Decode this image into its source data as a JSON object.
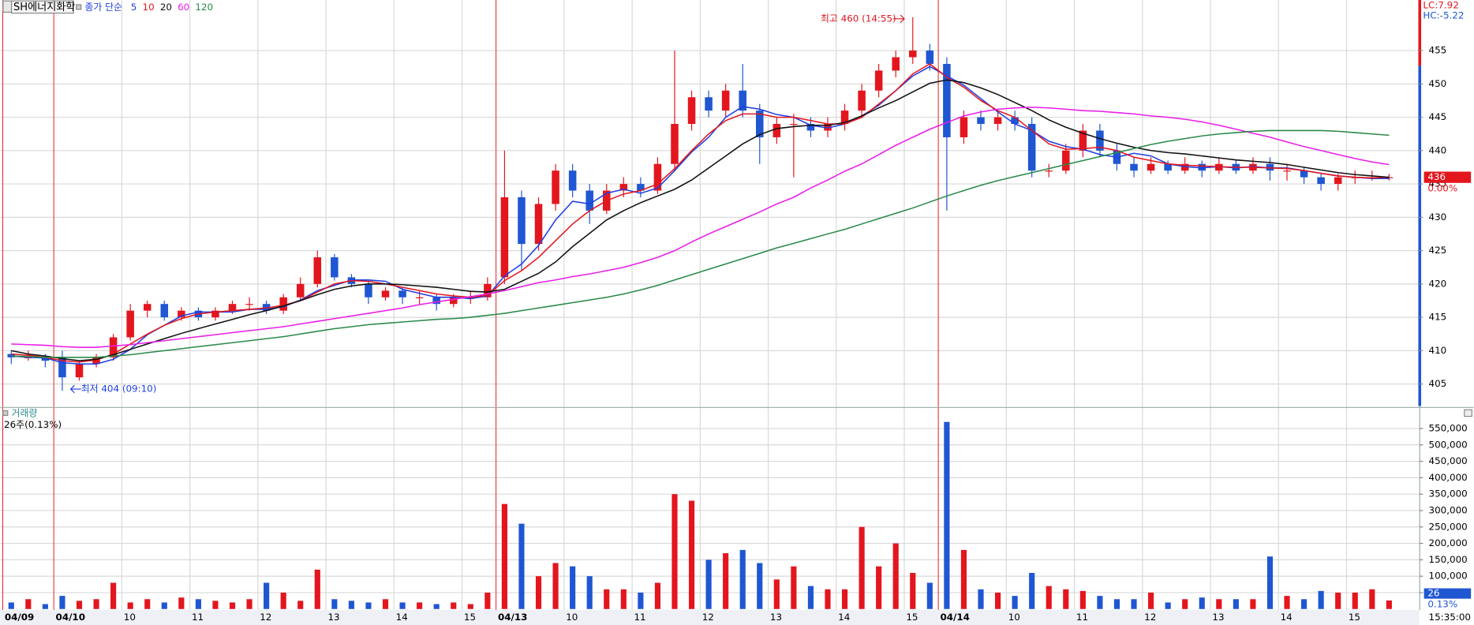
{
  "chart_data": [
    {
      "type": "candlestick",
      "title": "SH에너지화학",
      "legend_title": "종가 단순",
      "up_color": "#e3161e",
      "down_color": "#1f56d2",
      "ylim": [
        401.7,
        462.3
      ],
      "yticks": [
        405,
        410,
        415,
        420,
        425,
        430,
        435,
        440,
        445,
        450,
        455
      ],
      "grid": true,
      "info_labels": [
        "LC:7.92",
        "HC:-5.22"
      ],
      "last_price": 436,
      "last_change": "0.00%",
      "annotations": [
        "최고 460 (14:55)",
        "최저 404 (09:10)"
      ],
      "open": [
        409.5,
        409,
        409,
        409,
        406,
        408,
        409,
        412,
        416,
        417,
        415,
        416,
        415,
        416,
        417,
        417,
        416,
        418,
        420,
        424,
        421,
        420,
        418,
        419,
        418,
        418,
        417,
        418,
        418,
        421,
        433,
        426,
        432,
        437,
        434,
        431,
        434,
        435,
        434,
        438,
        444,
        448,
        446,
        449,
        446,
        442,
        444,
        444,
        443,
        444,
        446,
        449,
        452,
        454,
        455,
        453,
        442,
        445,
        444,
        445,
        444,
        437,
        437,
        440,
        443,
        440,
        438,
        437,
        438,
        437,
        438,
        437,
        438,
        437,
        438,
        437,
        437,
        436,
        435,
        436,
        436,
        436
      ],
      "high": [
        410,
        410,
        409.5,
        410,
        408.5,
        409.5,
        412.5,
        417,
        417.5,
        417.5,
        416.5,
        416.5,
        416.5,
        417.5,
        418,
        417.5,
        418.5,
        421,
        425,
        424.5,
        421.5,
        420.5,
        419.5,
        419.5,
        419,
        418.5,
        418.5,
        419,
        421,
        440,
        434,
        433,
        438,
        438,
        435,
        435,
        436,
        436,
        439,
        455,
        449,
        449,
        450,
        453,
        447,
        445,
        445.5,
        445,
        445,
        447,
        450,
        453,
        455,
        460,
        456,
        454,
        446,
        446,
        446,
        446,
        445,
        438,
        441,
        444,
        444,
        441,
        439,
        439,
        438.5,
        439,
        438.5,
        439,
        438.5,
        439,
        439,
        438,
        437.5,
        436.5,
        436.5,
        437,
        437,
        436.5
      ],
      "low": [
        408,
        408.5,
        407.5,
        404,
        405.5,
        407.5,
        408.5,
        411.5,
        415,
        414.5,
        414.5,
        414.5,
        414.5,
        415.5,
        416,
        415.5,
        415.5,
        417.5,
        419.5,
        420.5,
        419.5,
        417,
        417.5,
        417,
        417,
        416,
        416.5,
        417,
        417.5,
        420,
        422,
        425,
        431,
        433,
        429,
        430.5,
        433,
        433,
        433.5,
        437,
        443,
        445,
        445,
        445,
        438,
        441,
        436,
        442,
        442,
        443,
        445,
        448,
        451,
        453,
        452,
        431,
        441,
        443,
        443,
        443,
        436,
        436,
        436.5,
        439,
        439,
        437,
        436,
        436.5,
        436.5,
        436.5,
        436,
        436.5,
        436.5,
        436.5,
        435.5,
        435.5,
        435,
        434,
        434,
        435,
        435.5,
        435.5
      ],
      "close": [
        409,
        409,
        408.5,
        406,
        408,
        409,
        412,
        416,
        417,
        415,
        416,
        415,
        416,
        417,
        417,
        416,
        418,
        420,
        424,
        421,
        420,
        418,
        419,
        418,
        418,
        417,
        418,
        418,
        420,
        433,
        426,
        432,
        437,
        434,
        431,
        434,
        435,
        434,
        438,
        444,
        448,
        446,
        449,
        446,
        442,
        444,
        444,
        443,
        444,
        446,
        449,
        452,
        454,
        455,
        453,
        442,
        445,
        444,
        445,
        444,
        437,
        437,
        440,
        443,
        440,
        438,
        437,
        438,
        437,
        438,
        437,
        438,
        437,
        438,
        437,
        437,
        436,
        435,
        436,
        436,
        436,
        436
      ],
      "series": [
        {
          "name": "5",
          "color": "#1f3fe0",
          "values": [
            409.2,
            409,
            408.9,
            408.2,
            408,
            408,
            408.7,
            410.2,
            412.4,
            413.8,
            415.2,
            415.8,
            415.8,
            415.8,
            416.2,
            416.2,
            416.6,
            417.6,
            419,
            419.8,
            420.6,
            420.6,
            420.4,
            419.2,
            418.6,
            418,
            418,
            417.8,
            418.2,
            421.2,
            423,
            425.8,
            429.6,
            432.4,
            432,
            433.6,
            434.2,
            433.6,
            434.4,
            437,
            439.8,
            442,
            445,
            446.6,
            446.2,
            445.4,
            445,
            443.8,
            443.4,
            444,
            445.2,
            446.8,
            449,
            451.2,
            452.6,
            451.2,
            449.8,
            447.8,
            445.8,
            444,
            443,
            441.4,
            440.6,
            440.2,
            439.4,
            439,
            439.6,
            439.2,
            438,
            437.6,
            437.4,
            437.6,
            437.4,
            437.6,
            437.4,
            437.4,
            437,
            436.6,
            436.2,
            436,
            435.8,
            435.8
          ]
        },
        {
          "name": "10",
          "color": "#e3161e",
          "values": [
            409.5,
            409.3,
            409,
            408.5,
            408.3,
            408.6,
            409.5,
            411,
            412.5,
            413.8,
            414.8,
            415.5,
            415.8,
            416,
            416.2,
            416.4,
            416.8,
            417.5,
            418.8,
            420,
            420.5,
            420.4,
            420,
            419.5,
            419,
            418.5,
            418.2,
            418,
            418.3,
            420.5,
            422,
            424,
            426.5,
            429,
            431,
            432.5,
            433.5,
            434,
            435,
            437.3,
            440,
            442.5,
            444.5,
            445.5,
            445.5,
            445,
            445,
            444.5,
            444,
            444,
            445,
            447,
            449,
            451.5,
            453,
            451,
            449.5,
            447.5,
            446,
            445,
            443,
            441,
            440.2,
            440.3,
            440.5,
            440,
            439,
            438.5,
            438,
            437.8,
            437.7,
            437.6,
            437.5,
            437.5,
            437.4,
            437.3,
            437,
            436.6,
            436.2,
            436,
            435.9,
            436
          ]
        },
        {
          "name": "20",
          "color": "#111111",
          "values": [
            410,
            409.5,
            409.2,
            408.8,
            408.5,
            408.7,
            409.4,
            410.2,
            411,
            411.8,
            412.6,
            413.3,
            414,
            414.7,
            415.4,
            416,
            416.7,
            417.5,
            418.4,
            419.2,
            419.7,
            420,
            420,
            419.9,
            419.7,
            419.5,
            419.2,
            418.9,
            418.8,
            419.2,
            420.4,
            421.6,
            423.3,
            425.6,
            427.6,
            429.6,
            431,
            432.2,
            433.2,
            434.2,
            435.6,
            437.4,
            439.2,
            441,
            442.4,
            443.3,
            443.6,
            443.8,
            443.8,
            444.2,
            445.2,
            446.4,
            447.5,
            448.8,
            450.1,
            450.6,
            450.2,
            449.4,
            448.4,
            447.2,
            446,
            444.6,
            443.5,
            442.6,
            441.8,
            441.1,
            440.5,
            440,
            439.7,
            439.5,
            439.2,
            438.9,
            438.6,
            438.4,
            438.2,
            437.9,
            437.5,
            437.1,
            436.7,
            436.4,
            436.2,
            436
          ]
        },
        {
          "name": "60",
          "color": "#e81ee8",
          "values": [
            411,
            410.9,
            410.8,
            410.6,
            410.5,
            410.5,
            410.7,
            410.9,
            411.2,
            411.5,
            411.8,
            412.1,
            412.4,
            412.7,
            413,
            413.3,
            413.6,
            414,
            414.4,
            414.8,
            415.2,
            415.6,
            416,
            416.4,
            416.9,
            417.3,
            417.7,
            418.1,
            418.5,
            419,
            419.6,
            420.2,
            420.6,
            421.1,
            421.5,
            422,
            422.5,
            423.2,
            424,
            425,
            426.3,
            427.5,
            428.6,
            429.7,
            430.8,
            432,
            433,
            434.4,
            435.6,
            436.9,
            438,
            439.4,
            440.8,
            442,
            443.2,
            444.2,
            445.2,
            445.8,
            446.2,
            446.4,
            446.5,
            446.4,
            446.2,
            446,
            445.9,
            445.7,
            445.5,
            445.2,
            445,
            444.7,
            444.3,
            443.8,
            443.2,
            442.6,
            442,
            441.3,
            440.6,
            440,
            439.4,
            438.8,
            438.3,
            437.9
          ]
        },
        {
          "name": "120",
          "color": "#2a8a4a",
          "values": [
            409.2,
            409.1,
            409,
            409,
            409,
            409,
            409.2,
            409.4,
            409.7,
            410,
            410.3,
            410.6,
            410.9,
            411.2,
            411.5,
            411.8,
            412.1,
            412.5,
            412.9,
            413.3,
            413.6,
            413.9,
            414.1,
            414.3,
            414.5,
            414.7,
            414.8,
            415,
            415.3,
            415.6,
            416,
            416.4,
            416.8,
            417.2,
            417.6,
            418,
            418.5,
            419.1,
            419.8,
            420.6,
            421.4,
            422.2,
            423,
            423.8,
            424.6,
            425.4,
            426.1,
            426.8,
            427.5,
            428.2,
            429,
            429.8,
            430.6,
            431.4,
            432.3,
            433.2,
            434,
            434.8,
            435.5,
            436.1,
            436.7,
            437.3,
            437.9,
            438.5,
            439.1,
            439.7,
            440.3,
            440.9,
            441.4,
            441.8,
            442.2,
            442.5,
            442.7,
            442.9,
            443,
            443,
            443,
            443,
            442.9,
            442.7,
            442.5,
            442.3
          ]
        }
      ]
    },
    {
      "type": "bar",
      "title": "거래량",
      "subtitle": "26주(0.13%)",
      "categories": [
        "04/09",
        null,
        null,
        "04/10",
        null,
        null,
        null,
        "10",
        null,
        null,
        null,
        "11",
        null,
        null,
        null,
        "12",
        null,
        null,
        null,
        "13",
        null,
        null,
        null,
        "14",
        null,
        null,
        null,
        "15",
        null,
        "04/13",
        null,
        null,
        null,
        "10",
        null,
        null,
        null,
        "11",
        null,
        null,
        null,
        "12",
        null,
        null,
        null,
        "13",
        null,
        null,
        null,
        "14",
        null,
        null,
        null,
        "15",
        null,
        "04/14",
        null,
        null,
        null,
        "10",
        null,
        null,
        null,
        "11",
        null,
        null,
        null,
        "12",
        null,
        null,
        null,
        "13",
        null,
        null,
        null,
        "14",
        null,
        null,
        null,
        "15",
        null,
        null
      ],
      "values": [
        20000,
        30000,
        15000,
        40000,
        25000,
        30000,
        80000,
        20000,
        30000,
        20000,
        35000,
        30000,
        25000,
        20000,
        30000,
        80000,
        50000,
        25000,
        120000,
        30000,
        25000,
        20000,
        30000,
        20000,
        20000,
        15000,
        20000,
        15000,
        50000,
        320000,
        260000,
        100000,
        140000,
        130000,
        100000,
        60000,
        60000,
        50000,
        80000,
        350000,
        330000,
        150000,
        170000,
        180000,
        140000,
        90000,
        130000,
        70000,
        60000,
        60000,
        250000,
        130000,
        200000,
        110000,
        80000,
        570000,
        180000,
        60000,
        50000,
        40000,
        110000,
        70000,
        60000,
        55000,
        40000,
        30000,
        30000,
        50000,
        20000,
        30000,
        35000,
        30000,
        30000,
        30000,
        160000,
        40000,
        30000,
        55000,
        50000,
        50000,
        60000,
        26000
      ],
      "ylim": [
        0,
        607000
      ],
      "yticks": [
        {
          "value": 50000,
          "label": "50,000"
        },
        {
          "value": 100000,
          "label": "100,000"
        },
        {
          "value": 150000,
          "label": "150,000"
        },
        {
          "value": 200000,
          "label": "200,000"
        },
        {
          "value": 250000,
          "label": "250,000"
        },
        {
          "value": 300000,
          "label": "300,000"
        },
        {
          "value": 350000,
          "label": "350,000"
        },
        {
          "value": 400000,
          "label": "400,000"
        },
        {
          "value": 450000,
          "label": "450,000"
        },
        {
          "value": 500000,
          "label": "500,000"
        },
        {
          "value": 550000,
          "label": "550,000"
        }
      ],
      "grid": true,
      "last_volume": 26,
      "last_ratio": "0.13%",
      "time": "15:35:00"
    }
  ]
}
